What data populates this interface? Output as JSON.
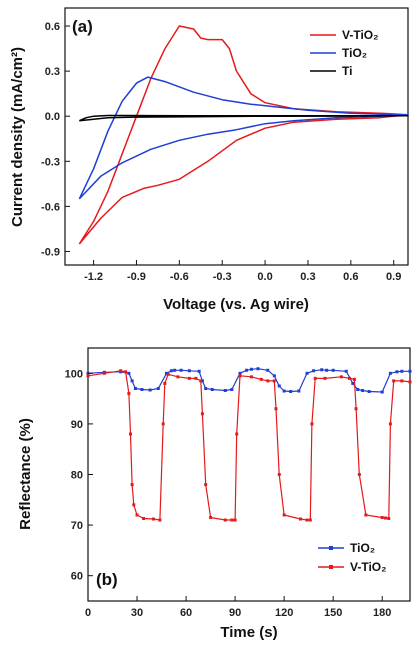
{
  "chart_data": [
    {
      "type": "line",
      "panel_label": "(a)",
      "xlabel": "Voltage (vs. Ag wire)",
      "ylabel": "Current density (mA/cm²)",
      "xlim": [
        -1.4,
        1.0
      ],
      "ylim": [
        -0.99,
        0.72
      ],
      "xticks": [
        "-1.2",
        "-0.9",
        "-0.6",
        "-0.3",
        "0.0",
        "0.3",
        "0.6",
        "0.9"
      ],
      "yticks": [
        "0.6",
        "0.3",
        "0.0",
        "-0.3",
        "-0.6",
        "-0.9"
      ],
      "legend": "top-right",
      "series": [
        {
          "name": "V-TiO₂",
          "color": "#e41a1c",
          "x": [
            -1.3,
            -1.2,
            -1.1,
            -1.0,
            -0.9,
            -0.8,
            -0.7,
            -0.6,
            -0.5,
            -0.45,
            -0.4,
            -0.3,
            -0.25,
            -0.2,
            -0.1,
            0.0,
            0.2,
            0.5,
            0.8,
            1.0,
            0.8,
            0.5,
            0.2,
            0.0,
            -0.2,
            -0.4,
            -0.6,
            -0.75,
            -0.85,
            -1.0,
            -1.15,
            -1.3
          ],
          "y": [
            -0.85,
            -0.7,
            -0.5,
            -0.25,
            0.0,
            0.25,
            0.45,
            0.6,
            0.58,
            0.52,
            0.51,
            0.51,
            0.45,
            0.3,
            0.15,
            0.09,
            0.05,
            0.03,
            0.02,
            0.01,
            -0.01,
            -0.02,
            -0.04,
            -0.08,
            -0.16,
            -0.3,
            -0.42,
            -0.46,
            -0.48,
            -0.54,
            -0.68,
            -0.85
          ]
        },
        {
          "name": "TiO₂",
          "color": "#1f3fd6",
          "x": [
            -1.3,
            -1.2,
            -1.1,
            -1.0,
            -0.9,
            -0.82,
            -0.7,
            -0.5,
            -0.3,
            -0.1,
            0.1,
            0.3,
            0.6,
            0.9,
            1.0,
            0.8,
            0.5,
            0.2,
            0.0,
            -0.2,
            -0.4,
            -0.6,
            -0.8,
            -1.0,
            -1.15,
            -1.3
          ],
          "y": [
            -0.55,
            -0.35,
            -0.1,
            0.1,
            0.22,
            0.26,
            0.23,
            0.16,
            0.11,
            0.08,
            0.06,
            0.04,
            0.02,
            0.01,
            0.01,
            0.0,
            -0.01,
            -0.03,
            -0.05,
            -0.09,
            -0.12,
            -0.16,
            -0.22,
            -0.31,
            -0.4,
            -0.55
          ]
        },
        {
          "name": "Ti",
          "color": "#000000",
          "x": [
            -1.3,
            -1.25,
            -1.2,
            -1.1,
            -1.0,
            -0.8,
            -0.5,
            0.0,
            0.5,
            1.0,
            0.5,
            0.0,
            -0.5,
            -0.9,
            -1.1,
            -1.2,
            -1.3
          ],
          "y": [
            -0.03,
            -0.01,
            0.0,
            0.005,
            0.005,
            0.004,
            0.003,
            0.003,
            0.003,
            0.003,
            0.001,
            0.0,
            -0.003,
            -0.006,
            -0.01,
            -0.02,
            -0.03
          ]
        }
      ]
    },
    {
      "type": "line",
      "panel_label": "(b)",
      "xlabel": "Time (s)",
      "ylabel": "Reflectance (%)",
      "xlim": [
        0,
        197
      ],
      "ylim": [
        55,
        105
      ],
      "xticks": [
        "0",
        "30",
        "60",
        "90",
        "120",
        "150",
        "180"
      ],
      "yticks": [
        "60",
        "70",
        "80",
        "90",
        "100"
      ],
      "legend": "bottom-right",
      "series": [
        {
          "name": "TiO₂",
          "color": "#1f3fd6",
          "x": [
            0,
            10,
            20,
            25,
            27,
            29,
            33,
            38,
            43,
            48,
            51,
            53,
            57,
            62,
            68,
            70,
            72,
            76,
            84,
            88,
            93,
            97,
            100,
            104,
            110,
            114,
            117,
            120,
            124,
            129,
            134,
            138,
            143,
            146,
            150,
            158,
            162,
            165,
            168,
            172,
            180,
            185,
            189,
            192,
            197
          ],
          "y": [
            100,
            100.2,
            100.3,
            100,
            98.5,
            97,
            96.8,
            96.7,
            97,
            100,
            100.5,
            100.6,
            100.6,
            100.5,
            100.4,
            98.5,
            97,
            96.8,
            96.6,
            96.8,
            100,
            100.6,
            100.8,
            100.9,
            100.6,
            99.5,
            97.5,
            96.5,
            96.4,
            96.5,
            100,
            100.5,
            100.7,
            100.6,
            100.6,
            100.4,
            98,
            96.8,
            96.6,
            96.4,
            96.3,
            100,
            100.3,
            100.4,
            100.4
          ]
        },
        {
          "name": "V-TiO₂",
          "color": "#e41a1c",
          "x": [
            0,
            10,
            20,
            23,
            25,
            26,
            27,
            28,
            30,
            34,
            40,
            44,
            46,
            47,
            49,
            55,
            62,
            66,
            69,
            70,
            72,
            75,
            84,
            88,
            90,
            91,
            93,
            100,
            106,
            110,
            114,
            115,
            117,
            120,
            130,
            134,
            136,
            137,
            139,
            145,
            155,
            160,
            163,
            164,
            166,
            170,
            180,
            182,
            184,
            185,
            187,
            192,
            197
          ],
          "y": [
            99.5,
            100,
            100.5,
            100.3,
            96,
            88,
            78,
            74,
            72,
            71.3,
            71.2,
            71,
            90,
            98,
            99.8,
            99.3,
            99,
            99,
            98.5,
            92,
            78,
            71.5,
            71,
            71,
            71,
            88,
            99.5,
            99.3,
            98.8,
            98.5,
            98.5,
            93,
            80,
            72,
            71.2,
            71,
            71,
            90,
            99,
            99,
            99.3,
            99,
            98.8,
            93,
            80,
            72,
            71.5,
            71.4,
            71.3,
            90,
            98.5,
            98.5,
            98.3
          ]
        }
      ]
    }
  ]
}
